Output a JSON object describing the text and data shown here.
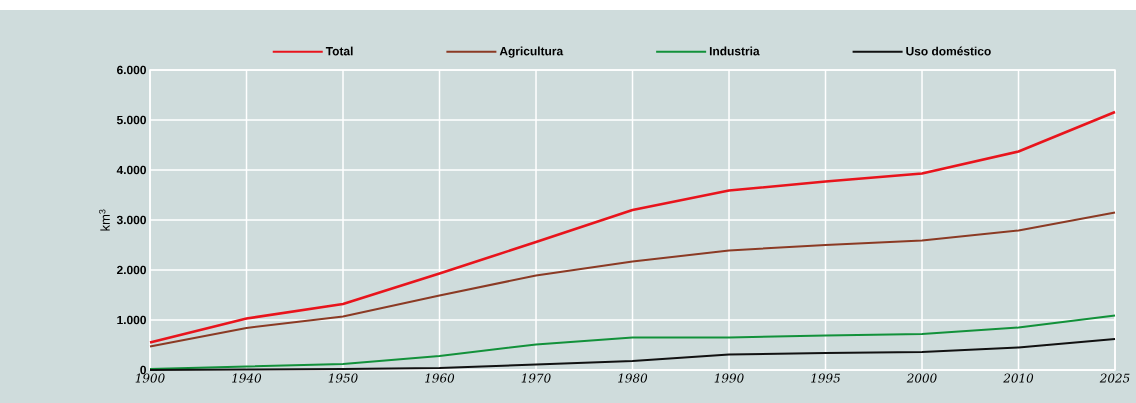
{
  "chart_data": {
    "type": "line",
    "ylabel": "km$^{3}$",
    "categories": [
      "1900",
      "1940",
      "1950",
      "1960",
      "1970",
      "1980",
      "1990",
      "1995",
      "2000",
      "2010",
      "2025"
    ],
    "series": [
      {
        "name": "Total",
        "color": "#e8141c",
        "values": [
          550,
          1030,
          1320,
          1930,
          2560,
          3200,
          3590,
          3770,
          3930,
          4370,
          5160
        ]
      },
      {
        "name": "Agricultura",
        "color": "#8b3a24",
        "values": [
          470,
          840,
          1070,
          1490,
          1890,
          2170,
          2390,
          2500,
          2590,
          2790,
          3150
        ]
      },
      {
        "name": "Industria",
        "color": "#12913a",
        "values": [
          20,
          70,
          120,
          280,
          510,
          650,
          650,
          690,
          720,
          850,
          1090
        ]
      },
      {
        "name": "Uso doméstico",
        "color": "#111111",
        "values": [
          0,
          10,
          20,
          40,
          110,
          180,
          310,
          340,
          360,
          450,
          620
        ]
      }
    ],
    "ylim": [
      0,
      6000
    ],
    "yticks": [
      0,
      {
        "value": 1000,
        "label": "1.000"
      },
      {
        "value": 2000,
        "label": "2.000"
      },
      {
        "value": 3000,
        "label": "3.000"
      },
      {
        "value": 4000,
        "label": "4.000"
      },
      {
        "value": 5000,
        "label": "5.000"
      },
      {
        "value": 6000,
        "label": "6.000"
      }
    ],
    "grid": true,
    "legend": "top",
    "marker": "none",
    "line_style": "solid"
  }
}
